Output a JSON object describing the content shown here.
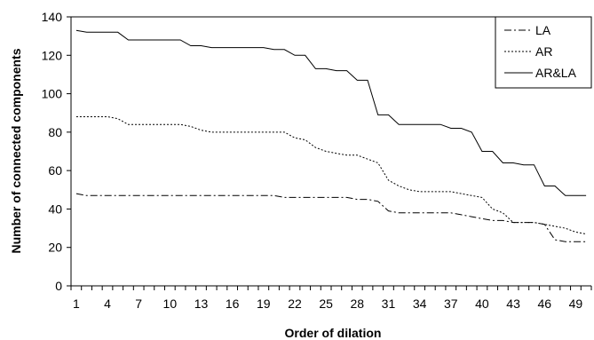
{
  "chart_data": {
    "type": "line",
    "xlabel": "Order of dilation",
    "ylabel": "Number of connected components",
    "ylim": [
      0,
      140
    ],
    "yticks": [
      0,
      20,
      40,
      60,
      80,
      100,
      120,
      140
    ],
    "xlim": [
      1,
      50
    ],
    "xticks": [
      1,
      4,
      7,
      10,
      13,
      16,
      19,
      22,
      25,
      28,
      31,
      34,
      37,
      40,
      43,
      46,
      49
    ],
    "grid": "horizontal line at 140 only",
    "legend_position": "top-right",
    "x": [
      1,
      2,
      3,
      4,
      5,
      6,
      7,
      8,
      9,
      10,
      11,
      12,
      13,
      14,
      15,
      16,
      17,
      18,
      19,
      20,
      21,
      22,
      23,
      24,
      25,
      26,
      27,
      28,
      29,
      30,
      31,
      32,
      33,
      34,
      35,
      36,
      37,
      38,
      39,
      40,
      41,
      42,
      43,
      44,
      45,
      46,
      47,
      48,
      49,
      50
    ],
    "series": [
      {
        "name": "LA",
        "style": "dash-dot",
        "color": "#000000",
        "values": [
          48,
          47,
          47,
          47,
          47,
          47,
          47,
          47,
          47,
          47,
          47,
          47,
          47,
          47,
          47,
          47,
          47,
          47,
          47,
          47,
          46,
          46,
          46,
          46,
          46,
          46,
          46,
          45,
          45,
          44,
          39,
          38,
          38,
          38,
          38,
          38,
          38,
          37,
          36,
          35,
          34,
          34,
          33,
          33,
          33,
          32,
          24,
          23,
          23,
          23
        ]
      },
      {
        "name": "AR",
        "style": "dotted",
        "color": "#000000",
        "values": [
          88,
          88,
          88,
          88,
          87,
          84,
          84,
          84,
          84,
          84,
          84,
          83,
          81,
          80,
          80,
          80,
          80,
          80,
          80,
          80,
          80,
          77,
          76,
          72,
          70,
          69,
          68,
          68,
          66,
          64,
          55,
          52,
          50,
          49,
          49,
          49,
          49,
          48,
          47,
          46,
          40,
          38,
          33,
          33,
          33,
          32,
          31,
          30,
          28,
          27
        ]
      },
      {
        "name": "AR&LA",
        "style": "solid",
        "color": "#000000",
        "values": [
          133,
          132,
          132,
          132,
          132,
          128,
          128,
          128,
          128,
          128,
          128,
          125,
          125,
          124,
          124,
          124,
          124,
          124,
          124,
          123,
          123,
          120,
          120,
          113,
          113,
          112,
          112,
          107,
          107,
          89,
          89,
          84,
          84,
          84,
          84,
          84,
          82,
          82,
          80,
          70,
          70,
          64,
          64,
          63,
          63,
          52,
          52,
          47,
          47,
          47
        ]
      }
    ]
  }
}
